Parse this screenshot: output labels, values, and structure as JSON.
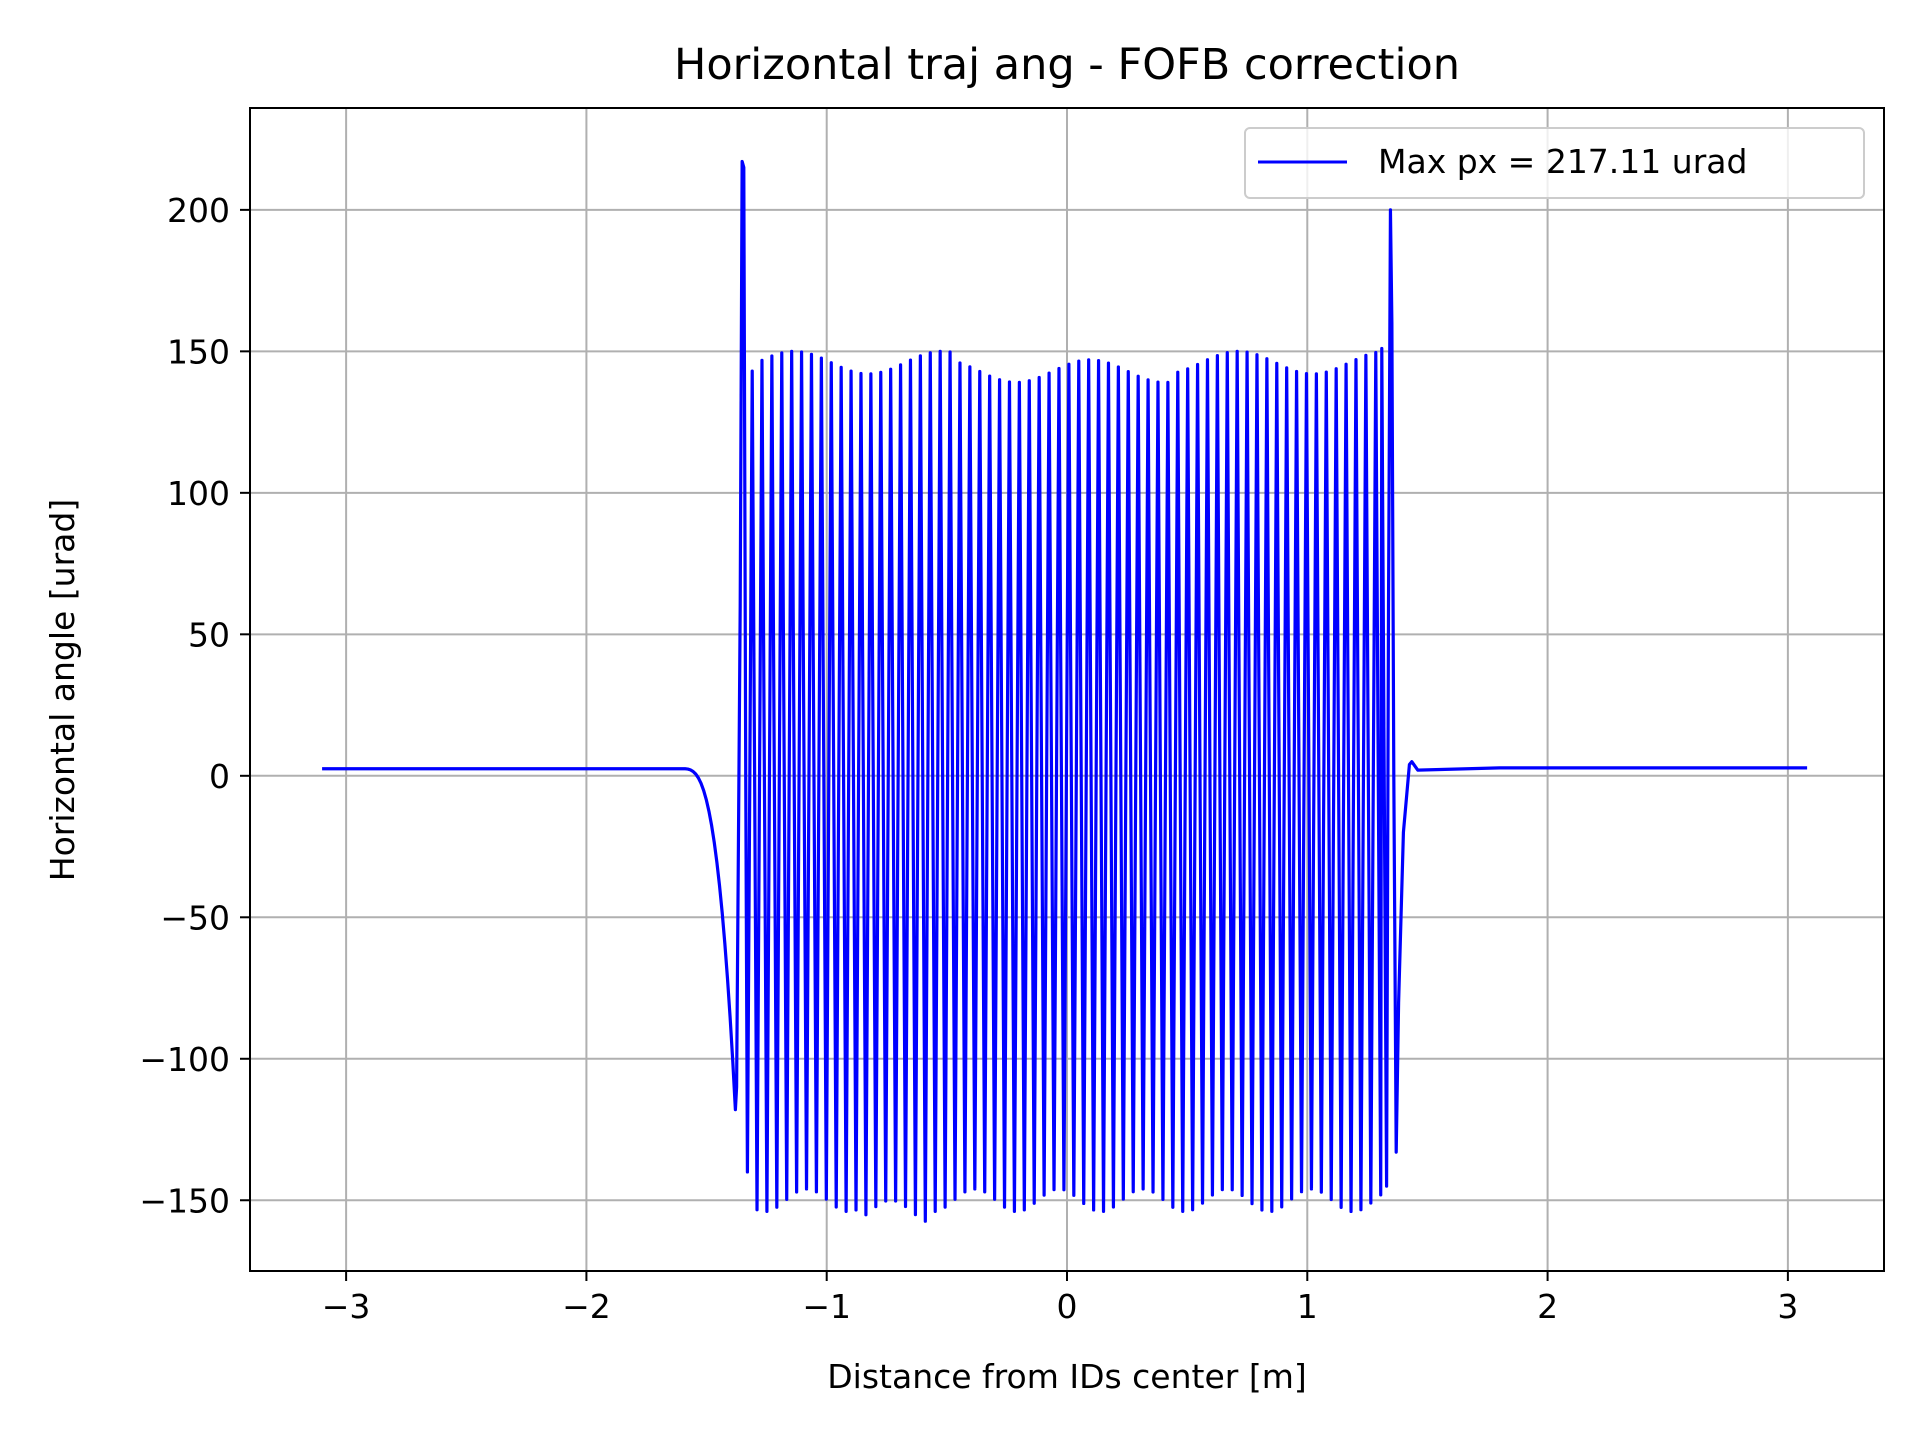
{
  "chart_data": {
    "type": "line",
    "title": "Horizontal traj ang - FOFB correction",
    "xlabel": "Distance from IDs center [m]",
    "ylabel": "Horizontal angle [urad]",
    "xlim": [
      -3.4,
      3.4
    ],
    "ylim": [
      -175,
      236
    ],
    "x_ticks": [
      -3,
      -2,
      -1,
      0,
      1,
      2,
      3
    ],
    "x_tick_labels": [
      "−3",
      "−2",
      "−1",
      "0",
      "1",
      "2",
      "3"
    ],
    "y_ticks": [
      -150,
      -100,
      -50,
      0,
      50,
      100,
      150,
      200
    ],
    "y_tick_labels": [
      "−150",
      "−100",
      "−50",
      "0",
      "50",
      "100",
      "150",
      "200"
    ],
    "grid": true,
    "legend_position": "top-right",
    "series": [
      {
        "name": "Max px = 217.11 urad",
        "color": "#0000ff",
        "baseline_left": 2.5,
        "baseline_right": 2.8,
        "x_start": -3.1,
        "x_end": 3.08,
        "oscillation_x_range": [
          -1.35,
          1.35
        ],
        "oscillation_period": 0.0412,
        "key_points": [
          {
            "x": -3.1,
            "y": 2.5
          },
          {
            "x": -1.6,
            "y": 2.5
          },
          {
            "x": -1.38,
            "y": -118
          },
          {
            "x": -1.35,
            "y": 217.11
          },
          {
            "x": -1.33,
            "y": -140
          },
          {
            "x": -1.31,
            "y": 143
          },
          {
            "x": -1.29,
            "y": -152
          },
          {
            "x": 1.31,
            "y": 151
          },
          {
            "x": 1.33,
            "y": -145
          },
          {
            "x": 1.345,
            "y": 200
          },
          {
            "x": 1.37,
            "y": -133
          },
          {
            "x": 1.43,
            "y": 5
          },
          {
            "x": 1.8,
            "y": 2.8
          },
          {
            "x": 3.08,
            "y": 2.8
          }
        ]
      }
    ]
  }
}
